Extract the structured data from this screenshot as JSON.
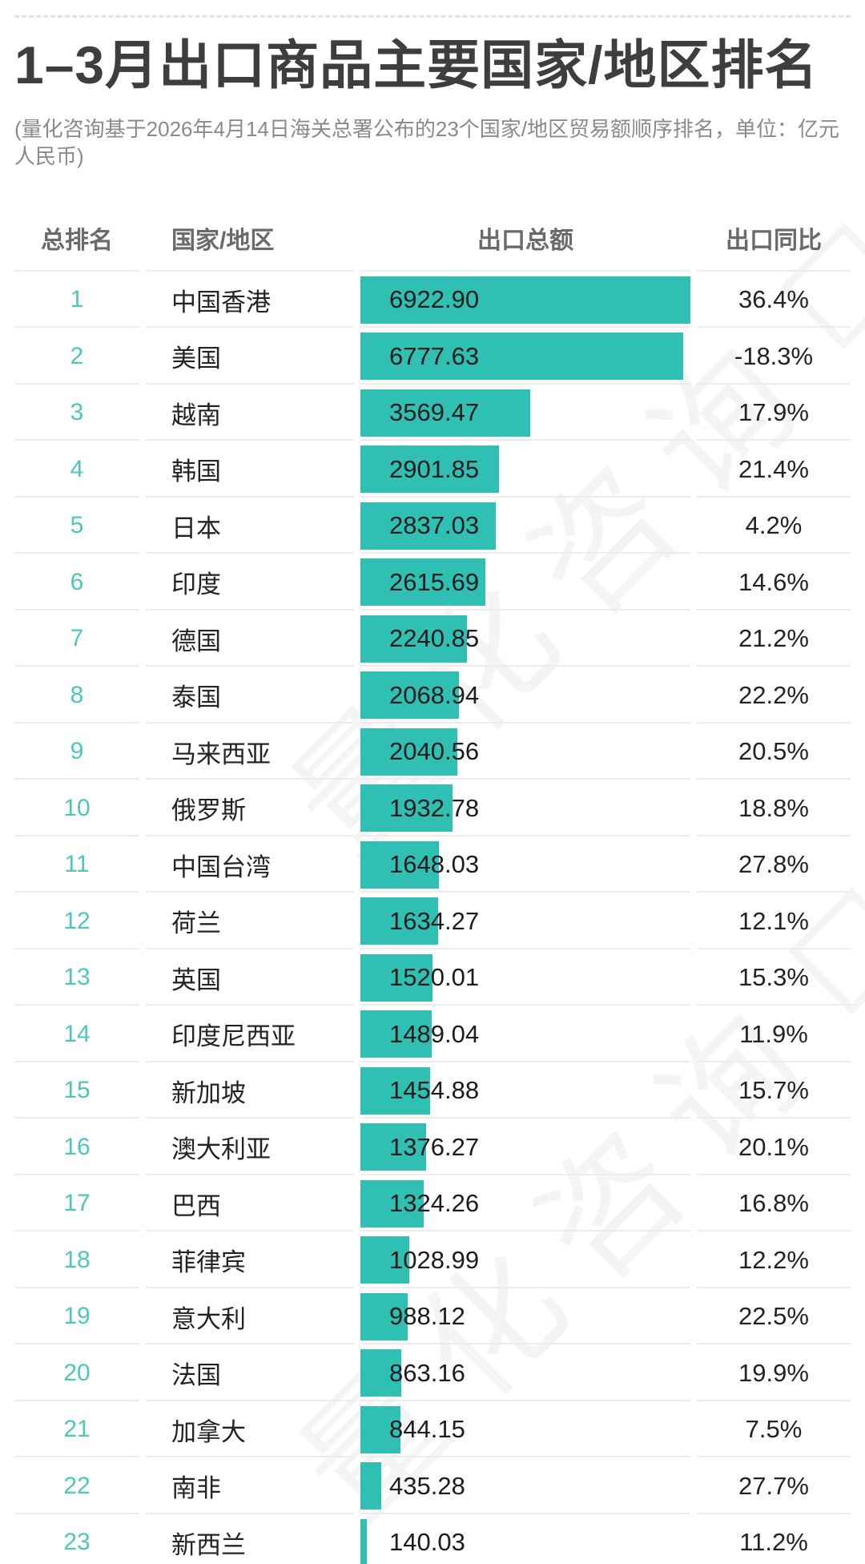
{
  "title": "1–3月出口商品主要国家/地区排名",
  "subtitle": "(量化咨询基于2026年4月14日海关总署公布的23个国家/地区贸易额顺序排名，单位：亿元人民币)",
  "watermark": {
    "text": "量化咨询"
  },
  "colors": {
    "bar": "#2fbfb3",
    "rank_number": "#4cc7ba"
  },
  "table": {
    "headers": {
      "rank": "总排名",
      "country": "国家/地区",
      "export": "出口总额",
      "yoy": "出口同比"
    },
    "rows": [
      {
        "rank": "1",
        "country": "中国香港",
        "export": "6922.90",
        "yoy": "36.4%"
      },
      {
        "rank": "2",
        "country": "美国",
        "export": "6777.63",
        "yoy": "-18.3%"
      },
      {
        "rank": "3",
        "country": "越南",
        "export": "3569.47",
        "yoy": "17.9%"
      },
      {
        "rank": "4",
        "country": "韩国",
        "export": "2901.85",
        "yoy": "21.4%"
      },
      {
        "rank": "5",
        "country": "日本",
        "export": "2837.03",
        "yoy": "4.2%"
      },
      {
        "rank": "6",
        "country": "印度",
        "export": "2615.69",
        "yoy": "14.6%"
      },
      {
        "rank": "7",
        "country": "德国",
        "export": "2240.85",
        "yoy": "21.2%"
      },
      {
        "rank": "8",
        "country": "泰国",
        "export": "2068.94",
        "yoy": "22.2%"
      },
      {
        "rank": "9",
        "country": "马来西亚",
        "export": "2040.56",
        "yoy": "20.5%"
      },
      {
        "rank": "10",
        "country": "俄罗斯",
        "export": "1932.78",
        "yoy": "18.8%"
      },
      {
        "rank": "11",
        "country": "中国台湾",
        "export": "1648.03",
        "yoy": "27.8%"
      },
      {
        "rank": "12",
        "country": "荷兰",
        "export": "1634.27",
        "yoy": "12.1%"
      },
      {
        "rank": "13",
        "country": "英国",
        "export": "1520.01",
        "yoy": "15.3%"
      },
      {
        "rank": "14",
        "country": "印度尼西亚",
        "export": "1489.04",
        "yoy": "11.9%"
      },
      {
        "rank": "15",
        "country": "新加坡",
        "export": "1454.88",
        "yoy": "15.7%"
      },
      {
        "rank": "16",
        "country": "澳大利亚",
        "export": "1376.27",
        "yoy": "20.1%"
      },
      {
        "rank": "17",
        "country": "巴西",
        "export": "1324.26",
        "yoy": "16.8%"
      },
      {
        "rank": "18",
        "country": "菲律宾",
        "export": "1028.99",
        "yoy": "12.2%"
      },
      {
        "rank": "19",
        "country": "意大利",
        "export": "988.12",
        "yoy": "22.5%"
      },
      {
        "rank": "20",
        "country": "法国",
        "export": "863.16",
        "yoy": "19.9%"
      },
      {
        "rank": "21",
        "country": "加拿大",
        "export": "844.15",
        "yoy": "7.5%"
      },
      {
        "rank": "22",
        "country": "南非",
        "export": "435.28",
        "yoy": "27.7%"
      },
      {
        "rank": "23",
        "country": "新西兰",
        "export": "140.03",
        "yoy": "11.2%"
      }
    ]
  },
  "chart_data": {
    "type": "bar",
    "orientation": "horizontal",
    "title": "1–3月出口商品主要国家/地区排名",
    "subtitle": "量化咨询基于2026年4月14日海关总署公布的23个国家/地区贸易额顺序排名",
    "unit": "亿元人民币",
    "categories": [
      "中国香港",
      "美国",
      "越南",
      "韩国",
      "日本",
      "印度",
      "德国",
      "泰国",
      "马来西亚",
      "俄罗斯",
      "中国台湾",
      "荷兰",
      "英国",
      "印度尼西亚",
      "新加坡",
      "澳大利亚",
      "巴西",
      "菲律宾",
      "意大利",
      "法国",
      "加拿大",
      "南非",
      "新西兰"
    ],
    "series": [
      {
        "name": "出口总额",
        "values": [
          6922.9,
          6777.63,
          3569.47,
          2901.85,
          2837.03,
          2615.69,
          2240.85,
          2068.94,
          2040.56,
          1932.78,
          1648.03,
          1634.27,
          1520.01,
          1489.04,
          1454.88,
          1376.27,
          1324.26,
          1028.99,
          988.12,
          863.16,
          844.15,
          435.28,
          140.03
        ]
      },
      {
        "name": "出口同比(%)",
        "values": [
          36.4,
          -18.3,
          17.9,
          21.4,
          4.2,
          14.6,
          21.2,
          22.2,
          20.5,
          18.8,
          27.8,
          12.1,
          15.3,
          11.9,
          15.7,
          20.1,
          16.8,
          12.2,
          22.5,
          19.9,
          7.5,
          27.7,
          11.2
        ]
      }
    ],
    "xlim": [
      0,
      6922.9
    ],
    "grid": false,
    "legend": false,
    "bar_color": "#2fbfb3"
  }
}
